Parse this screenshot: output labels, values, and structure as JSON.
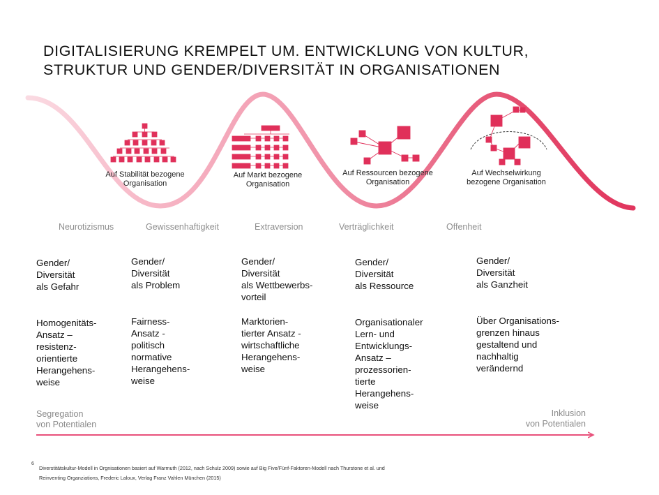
{
  "title": "DIGITALISIERUNG KREMPELT UM. ENTWICKLUNG VON KULTUR, STRUKTUR UND GENDER/DIVERSITÄT IN ORGANISATIONEN",
  "colors": {
    "accent": "#e0305a",
    "light_accent": "#f4a3b5",
    "arrow": "#e8507a",
    "trait_text": "#8e8e8e"
  },
  "organisations": [
    {
      "label": "Auf Stabilität bezogene Organisation",
      "icon": "pyramid-hierarchy-icon"
    },
    {
      "label": "Auf Markt bezogene Organisation",
      "icon": "matrix-hierarchy-icon"
    },
    {
      "label": "Auf Ressourcen bezogene Organisation",
      "icon": "network-icon"
    },
    {
      "label": "Auf Wechselwirkung bezogene Organisation",
      "icon": "ecosystem-network-icon"
    }
  ],
  "traits": [
    "Neurotizismus",
    "Gewissenhaftigkeit",
    "Extraversion",
    "Verträglichkeit",
    "Offenheit"
  ],
  "columns": [
    {
      "heading": "Gender/\nDiversität\nals Gefahr",
      "approach": "Homogenitäts-\nAnsatz –\nresistenz-\norientierte\nHerangehens-\nweise"
    },
    {
      "heading": "Gender/\nDiversität\nals Problem",
      "approach": "Fairness-\nAnsatz -\npolitisch\nnormative\nHerangehens-\nweise"
    },
    {
      "heading": "Gender/\nDiversität\nals Wettbewerbs-\nvorteil",
      "approach": "Marktorien-\ntierter Ansatz -\nwirtschaftliche\nHerangehens-\nweise"
    },
    {
      "heading": "Gender/\nDiversität\nals Ressource",
      "approach": "Organisationaler\nLern- und\nEntwicklungs-\nAnsatz –\nprozessorien-\ntierte\nHerangehens-\nweise"
    },
    {
      "heading": "Gender/\nDiversität\nals Ganzheit",
      "approach": "Über Organisations-\ngrenzen hinaus\ngestaltend und\nnachhaltig\nverändernd"
    }
  ],
  "axis": {
    "left": "Segregation\nvon Potentialen",
    "right": "Inklusion\nvon Potentialen"
  },
  "footnote": {
    "number": "6",
    "text": "Diverstitätskultur-Modell in Orgnisationen basiert auf Warmuth (2012, nach Schulz 2009) sowie auf Big Five/Fünf-Faktoren-Modell nach Thurstone et al. und\nReinventing Organziations, Frederic Laloux, Verlag Franz Vahlen München (2015)"
  }
}
